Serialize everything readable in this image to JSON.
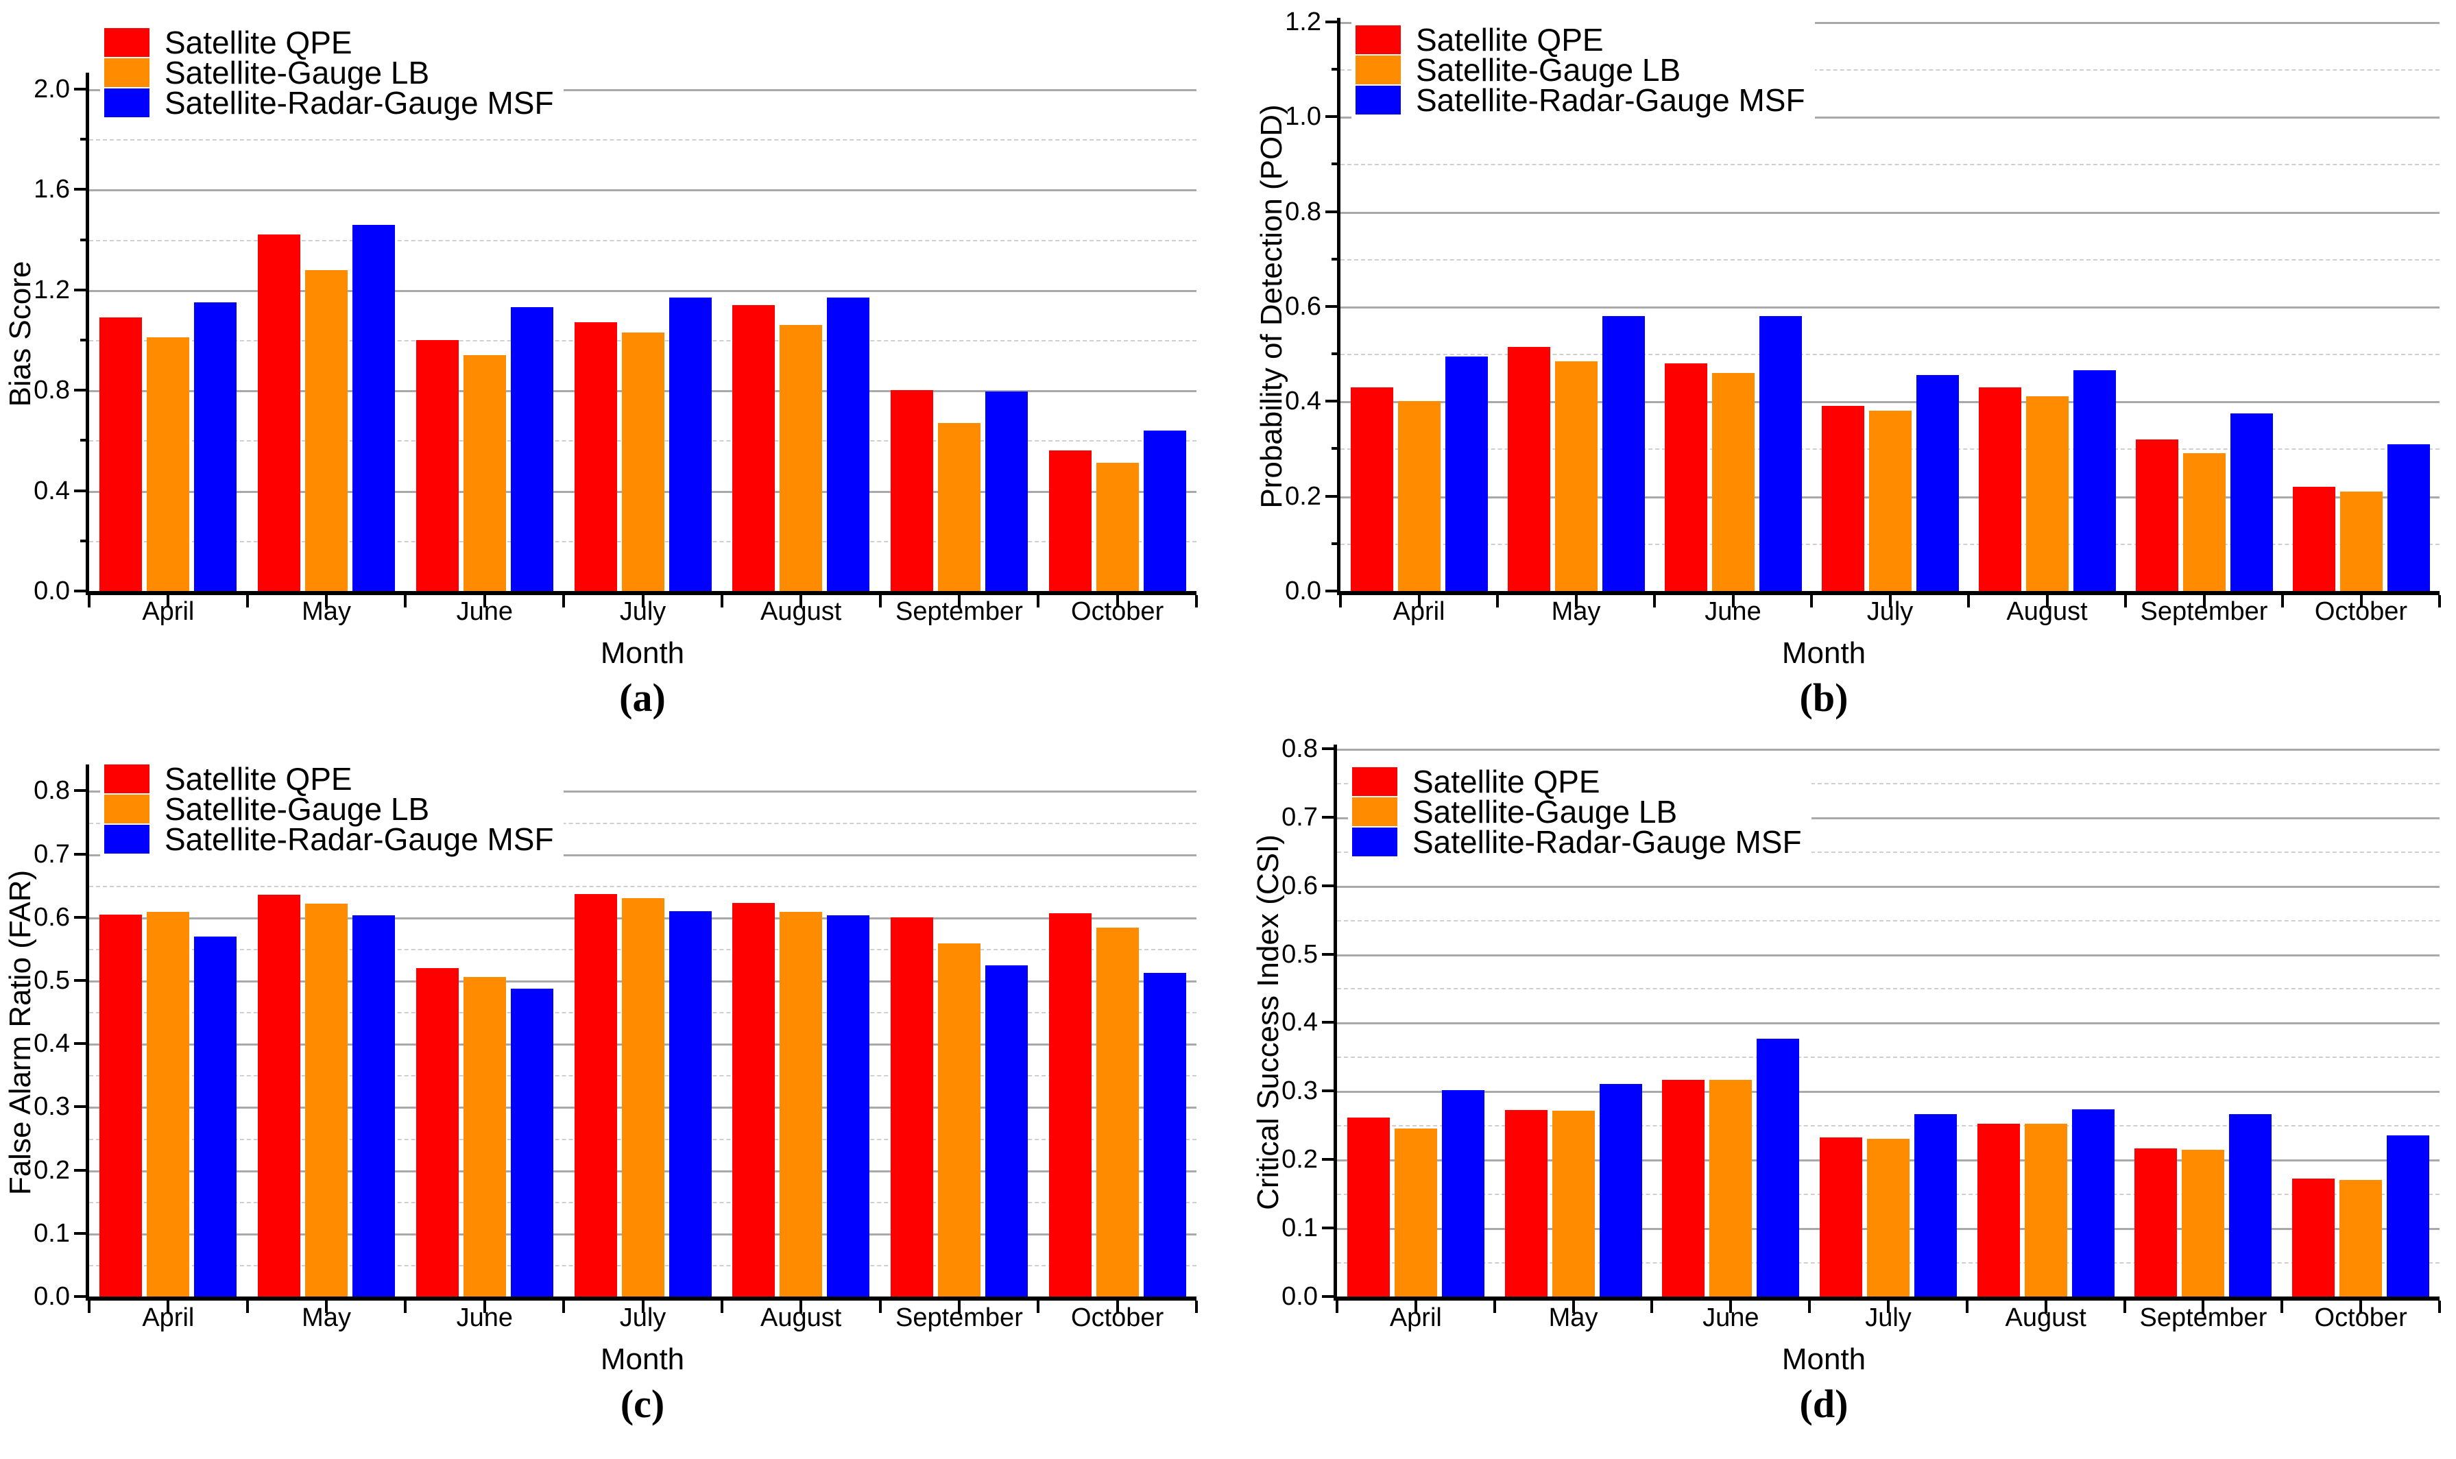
{
  "figure": {
    "xlabel": "Month",
    "months": [
      "April",
      "May",
      "June",
      "July",
      "August",
      "September",
      "October"
    ],
    "legend": [
      "Satellite QPE",
      "Satellite-Gauge LB",
      "Satellite-Radar-Gauge MSF"
    ],
    "colors": {
      "satellite_qpe": "#FF0000",
      "satellite_gauge_lb": "#FF8C00",
      "satellite_radar_gauge_msf": "#0000FF",
      "grid_major": "#A9A9A9",
      "grid_minor": "#CFCFCF",
      "axis": "#000000"
    }
  },
  "chart_data": [
    {
      "type": "bar",
      "panel_label": "(a)",
      "ylabel": "Bias Score",
      "xlabel": "Month",
      "categories": [
        "April",
        "May",
        "June",
        "July",
        "August",
        "September",
        "October"
      ],
      "ylim": [
        0,
        2.05
      ],
      "yticks": [
        "0.0",
        "0.4",
        "0.8",
        "1.2",
        "1.6",
        "2.0"
      ],
      "ytick_step": 0.4,
      "grid": "major solid, minor dashed at 0.2",
      "legend_position": "top-left inside",
      "series": [
        {
          "name": "Satellite QPE",
          "color": "#FF0000",
          "values": [
            1.09,
            1.42,
            1.0,
            1.07,
            1.14,
            0.8,
            0.56
          ]
        },
        {
          "name": "Satellite-Gauge LB",
          "color": "#FF8C00",
          "values": [
            1.01,
            1.28,
            0.94,
            1.03,
            1.06,
            0.67,
            0.51
          ]
        },
        {
          "name": "Satellite-Radar-Gauge MSF",
          "color": "#0000FF",
          "values": [
            1.15,
            1.46,
            1.13,
            1.17,
            1.17,
            0.795,
            0.64
          ]
        }
      ]
    },
    {
      "type": "bar",
      "panel_label": "(b)",
      "ylabel": "Probability of Detection (POD)",
      "xlabel": "Month",
      "categories": [
        "April",
        "May",
        "June",
        "July",
        "August",
        "September",
        "October"
      ],
      "ylim": [
        0,
        1.2
      ],
      "yticks": [
        "0.0",
        "0.2",
        "0.4",
        "0.6",
        "0.8",
        "1.0",
        "1.2"
      ],
      "ytick_step": 0.2,
      "grid": "major solid, minor dashed at 0.1",
      "legend_position": "top-left inside",
      "series": [
        {
          "name": "Satellite QPE",
          "color": "#FF0000",
          "values": [
            0.43,
            0.515,
            0.48,
            0.39,
            0.43,
            0.32,
            0.22
          ]
        },
        {
          "name": "Satellite-Gauge LB",
          "color": "#FF8C00",
          "values": [
            0.4,
            0.485,
            0.46,
            0.38,
            0.41,
            0.29,
            0.21
          ]
        },
        {
          "name": "Satellite-Radar-Gauge MSF",
          "color": "#0000FF",
          "values": [
            0.495,
            0.58,
            0.58,
            0.455,
            0.465,
            0.375,
            0.31
          ]
        }
      ]
    },
    {
      "type": "bar",
      "panel_label": "(c)",
      "ylabel": "False Alarm Ratio (FAR)",
      "xlabel": "Month",
      "categories": [
        "April",
        "May",
        "June",
        "July",
        "August",
        "September",
        "October"
      ],
      "ylim": [
        0,
        0.835
      ],
      "yticks": [
        "0.0",
        "0.1",
        "0.2",
        "0.3",
        "0.4",
        "0.5",
        "0.6",
        "0.7",
        "0.8"
      ],
      "ytick_step": 0.1,
      "grid": "major solid, minor dashed at 0.05",
      "legend_position": "top-left inside",
      "series": [
        {
          "name": "Satellite QPE",
          "color": "#FF0000",
          "values": [
            0.604,
            0.636,
            0.519,
            0.637,
            0.623,
            0.6,
            0.606
          ]
        },
        {
          "name": "Satellite-Gauge LB",
          "color": "#FF8C00",
          "values": [
            0.608,
            0.621,
            0.505,
            0.63,
            0.608,
            0.559,
            0.584
          ]
        },
        {
          "name": "Satellite-Radar-Gauge MSF",
          "color": "#0000FF",
          "values": [
            0.569,
            0.603,
            0.487,
            0.61,
            0.603,
            0.524,
            0.512
          ]
        }
      ]
    },
    {
      "type": "bar",
      "panel_label": "(d)",
      "ylabel": "Critical Success Index (CSI)",
      "xlabel": "Month",
      "categories": [
        "April",
        "May",
        "June",
        "July",
        "August",
        "September",
        "October"
      ],
      "ylim": [
        0,
        0.8
      ],
      "yticks": [
        "0.0",
        "0.1",
        "0.2",
        "0.3",
        "0.4",
        "0.5",
        "0.6",
        "0.7",
        "0.8"
      ],
      "ytick_step": 0.1,
      "grid": "major solid, minor dashed at 0.05",
      "legend_position": "top-left inside",
      "series": [
        {
          "name": "Satellite QPE",
          "color": "#FF0000",
          "values": [
            0.261,
            0.272,
            0.316,
            0.232,
            0.252,
            0.216,
            0.172
          ]
        },
        {
          "name": "Satellite-Gauge LB",
          "color": "#FF8C00",
          "values": [
            0.245,
            0.271,
            0.316,
            0.23,
            0.252,
            0.214,
            0.17
          ]
        },
        {
          "name": "Satellite-Radar-Gauge MSF",
          "color": "#0000FF",
          "values": [
            0.301,
            0.31,
            0.376,
            0.266,
            0.273,
            0.266,
            0.235
          ]
        }
      ]
    }
  ]
}
